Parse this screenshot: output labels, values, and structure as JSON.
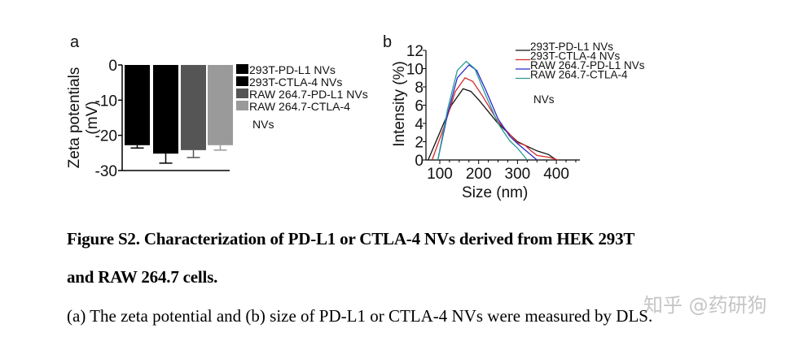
{
  "chart_data": [
    {
      "panel": "a",
      "type": "bar",
      "ylabel": "Zeta potentials (mV)",
      "ylim": [
        -30,
        0
      ],
      "yticks": [
        0,
        -10,
        -20,
        -30
      ],
      "series": [
        {
          "name": "293T-PD-L1 NVs",
          "value": -22.8,
          "error": 0.8,
          "color": "#000000"
        },
        {
          "name": "293T-CTLA-4 NVs",
          "value": -25.2,
          "error": 2.7,
          "color": "#000000"
        },
        {
          "name": "RAW 264.7-PD-L1 NVs",
          "value": -24.2,
          "error": 2.1,
          "color": "#555555"
        },
        {
          "name": "RAW 264.7-CTLA-4 NVs",
          "value": -22.8,
          "error": 1.4,
          "color": "#9a9a9a"
        }
      ],
      "legend": [
        "293T-PD-L1 NVs",
        "293T-CTLA-4 NVs",
        "RAW 264.7-PD-L1 NVs",
        "RAW 264.7-CTLA-4",
        "NVs"
      ],
      "legend_placement": "right",
      "grid": false
    },
    {
      "panel": "b",
      "type": "line",
      "xlabel": "Size (nm)",
      "ylabel": "Intensity (%)",
      "xlim": [
        65,
        460
      ],
      "ylim": [
        0,
        12
      ],
      "xticks": [
        100,
        200,
        300,
        400
      ],
      "yticks": [
        0,
        2,
        4,
        6,
        8,
        10,
        12
      ],
      "series": [
        {
          "name": "293T-PD-L1 NVs",
          "color": "#111111",
          "x": [
            70,
            100,
            130,
            160,
            180,
            200,
            250,
            300,
            330,
            350,
            380,
            400
          ],
          "y": [
            0,
            3.0,
            6.0,
            7.8,
            7.5,
            6.6,
            4.0,
            2.0,
            1.4,
            1.0,
            0.6,
            0
          ]
        },
        {
          "name": "293T-CTLA-4 NVs",
          "color": "#d42a2a",
          "x": [
            80,
            110,
            140,
            165,
            185,
            210,
            250,
            300,
            320,
            335,
            350,
            380,
            405
          ],
          "y": [
            0,
            3.5,
            7.5,
            9.0,
            8.6,
            7.0,
            4.2,
            1.9,
            1.6,
            1.0,
            0.5,
            0.3,
            0
          ]
        },
        {
          "name": "RAW 264.7-PD-L1 NVs",
          "color": "#2b2bc8",
          "x": [
            95,
            120,
            145,
            175,
            195,
            220,
            250,
            280,
            300,
            325,
            350
          ],
          "y": [
            0,
            5.0,
            9.0,
            10.4,
            9.8,
            7.5,
            4.5,
            2.6,
            1.8,
            0.9,
            0
          ]
        },
        {
          "name": "RAW 264.7-CTLA-4 NVs",
          "color": "#2a9a9a",
          "x": [
            95,
            120,
            145,
            168,
            190,
            215,
            250,
            280,
            300,
            325
          ],
          "y": [
            0,
            5.5,
            9.8,
            10.8,
            10.0,
            7.4,
            4.0,
            2.1,
            1.3,
            0
          ]
        }
      ],
      "legend": [
        "293T-PD-L1 NVs",
        "293T-CTLA-4 NVs",
        "RAW 264.7-PD-L1 NVs",
        "RAW 264.7-CTLA-4",
        "NVs"
      ],
      "legend_placement": "top-right",
      "grid": false
    }
  ],
  "caption": {
    "line1": "Figure S2. Characterization of PD-L1 or CTLA-4 NVs derived from HEK 293T",
    "line2": "and RAW 264.7 cells.",
    "line3": "(a) The zeta potential and (b) size of PD-L1 or CTLA-4 NVs were measured by DLS."
  },
  "watermark": "知乎 @药研狗"
}
